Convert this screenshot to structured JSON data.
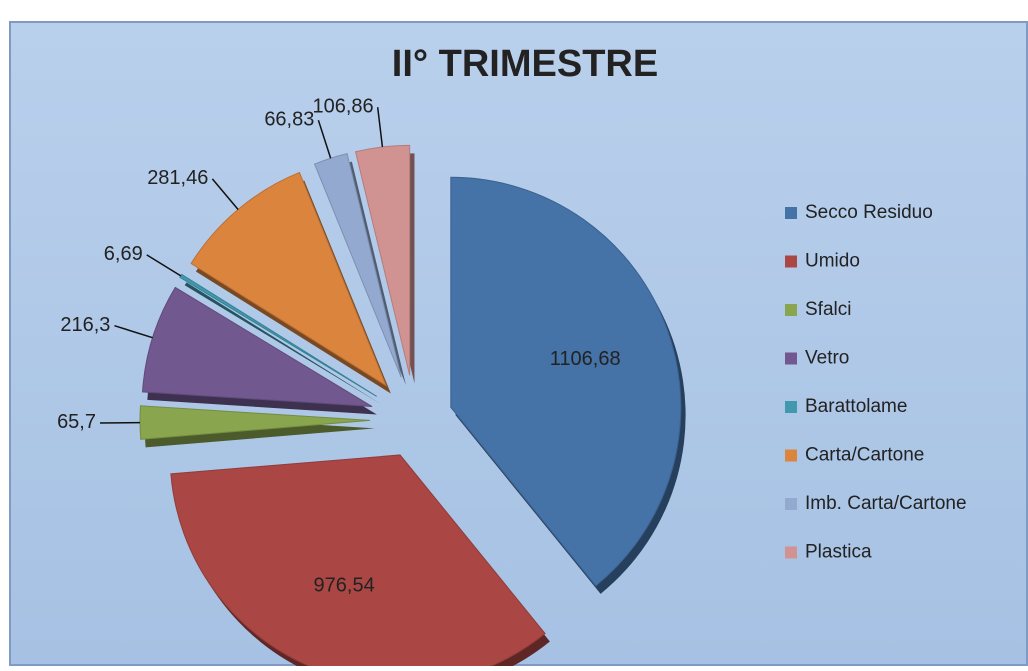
{
  "chart_data": {
    "type": "pie",
    "title": "II° TRIMESTRE",
    "categories": [
      "Secco Residuo",
      "Umido",
      "Sfalci",
      "Vetro",
      "Barattolame",
      "Carta/Cartone",
      "Imb. Carta/Cartone",
      "Plastica"
    ],
    "values": [
      1106.68,
      976.54,
      65.7,
      216.3,
      6.69,
      281.46,
      66.83,
      106.86
    ],
    "value_labels": [
      "1106,68",
      "976,54",
      "65,7",
      "216,3",
      "6,69",
      "281,46",
      "66,83",
      "106,86"
    ],
    "colors": [
      "#4572a7",
      "#aa4643",
      "#89a54e",
      "#71588f",
      "#4198af",
      "#db843d",
      "#93a9cf",
      "#d19392"
    ],
    "legend": "right"
  }
}
